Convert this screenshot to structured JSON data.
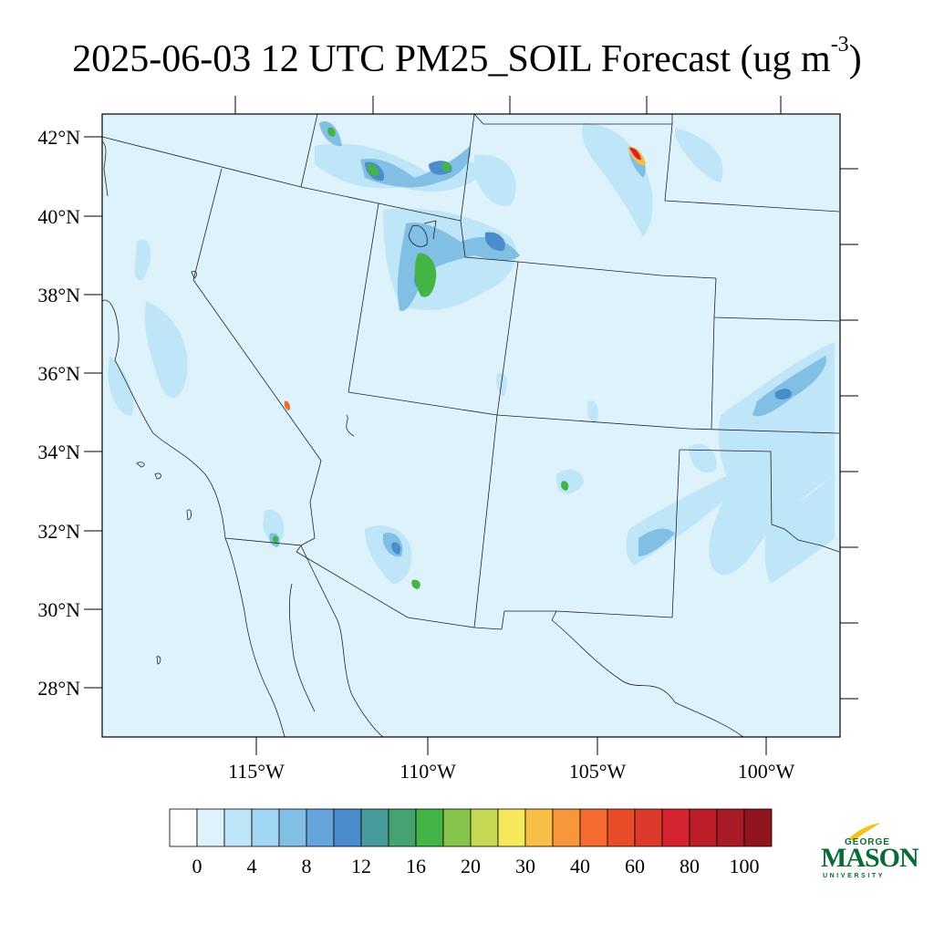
{
  "title": {
    "main": "2025-06-03 12 UTC PM25_SOIL Forecast (ug m",
    "exponent": "-3",
    "close": ")"
  },
  "map": {
    "lat_labels": [
      "42°N",
      "40°N",
      "38°N",
      "36°N",
      "34°N",
      "32°N",
      "30°N",
      "28°N"
    ],
    "lon_labels": [
      "115°W",
      "110°W",
      "105°W",
      "100°W"
    ],
    "background_color": "#def2fb"
  },
  "colorbar": {
    "labels": [
      "0",
      "4",
      "8",
      "12",
      "16",
      "20",
      "30",
      "40",
      "60",
      "80",
      "100"
    ],
    "colors": [
      "#ffffff",
      "#def2fb",
      "#bfe5f8",
      "#a0d6f3",
      "#82bfe5",
      "#65a5dc",
      "#4a8ccc",
      "#479b9b",
      "#44a371",
      "#44b446",
      "#86c44c",
      "#c5d955",
      "#f6e85a",
      "#f8bf47",
      "#f7963d",
      "#f46a2f",
      "#e84c28",
      "#db3a2a",
      "#d5232f",
      "#bd1d29",
      "#a81a25",
      "#8f141d"
    ]
  },
  "logo": {
    "line1": "GEORGE",
    "line2": "MASON",
    "line3": "UNIVERSITY"
  }
}
